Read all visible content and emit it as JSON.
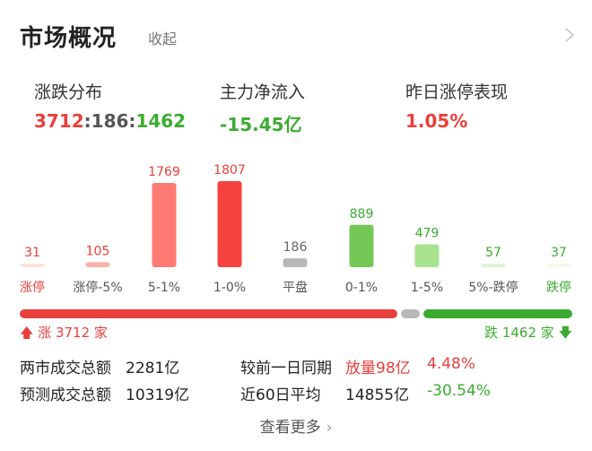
{
  "header": {
    "title": "市场概况",
    "collapse_label": "收起"
  },
  "stats": {
    "distribution": {
      "label": "涨跌分布",
      "up": "3712",
      "sep1": ":",
      "flat": "186",
      "sep2": ":",
      "down": "1462"
    },
    "main_flow": {
      "label": "主力净流入",
      "value": "-15.45亿"
    },
    "yesterday_limitup": {
      "label": "昨日涨停表现",
      "value": "1.05%"
    }
  },
  "chart_data": {
    "type": "bar",
    "categories": [
      "涨停",
      "涨停-5%",
      "5-1%",
      "1-0%",
      "平盘",
      "0-1%",
      "1-5%",
      "5%-跌停",
      "跌停"
    ],
    "values": [
      31,
      105,
      1769,
      1807,
      186,
      889,
      479,
      57,
      37
    ],
    "colors": [
      "#fde0dd",
      "#fbb0aa",
      "#ff7b73",
      "#f5423c",
      "#b8b8b8",
      "#74c956",
      "#a8e28e",
      "#dff3d2",
      "#f3fae8"
    ],
    "label_colors": [
      "#e8403d",
      "#e8403d",
      "#e8403d",
      "#e8403d",
      "#666666",
      "#3bab30",
      "#3bab30",
      "#3bab30",
      "#3bab30"
    ],
    "category_colors": [
      "#e8403d",
      "#555555",
      "#555555",
      "#555555",
      "#555555",
      "#555555",
      "#555555",
      "#555555",
      "#3bab30"
    ]
  },
  "breadth": {
    "up_label": "涨 3712 家",
    "down_label": "跌 1462 家",
    "up": 3712,
    "flat": 186,
    "down": 1462,
    "up_color": "#e8403d",
    "flat_color": "#b8b8b8",
    "down_color": "#3bab30"
  },
  "info": {
    "row1": {
      "label": "两市成交总额",
      "value": "2281亿",
      "compare_label": "较前一日同期",
      "compare_value": "放量98亿",
      "compare_pct": "4.48%"
    },
    "row2": {
      "label": "预测成交总额",
      "value": "10319亿",
      "compare_label": "近60日平均",
      "compare_value": "14855亿",
      "compare_pct": "-30.54%"
    }
  },
  "more_label": "查看更多"
}
